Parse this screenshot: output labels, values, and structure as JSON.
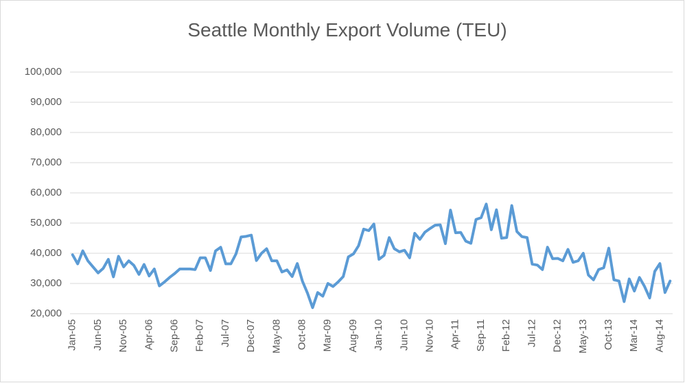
{
  "chart_data": {
    "type": "line",
    "title": "Seattle Monthly Export Volume (TEU)",
    "categories": [
      "Jan-05",
      null,
      null,
      null,
      null,
      "Jun-05",
      null,
      null,
      null,
      null,
      "Nov-05",
      null,
      null,
      null,
      null,
      "Apr-06",
      null,
      null,
      null,
      null,
      "Sep-06",
      null,
      null,
      null,
      null,
      "Feb-07",
      null,
      null,
      null,
      null,
      "Jul-07",
      null,
      null,
      null,
      null,
      "Dec-07",
      null,
      null,
      null,
      null,
      "May-08",
      null,
      null,
      null,
      null,
      "Oct-08",
      null,
      null,
      null,
      null,
      "Mar-09",
      null,
      null,
      null,
      null,
      "Aug-09",
      null,
      null,
      null,
      null,
      "Jan-10",
      null,
      null,
      null,
      null,
      "Jun-10",
      null,
      null,
      null,
      null,
      "Nov-10",
      null,
      null,
      null,
      null,
      "Apr-11",
      null,
      null,
      null,
      null,
      "Sep-11",
      null,
      null,
      null,
      null,
      "Feb-12",
      null,
      null,
      null,
      null,
      "Jul-12",
      null,
      null,
      null,
      null,
      "Dec-12",
      null,
      null,
      null,
      null,
      "May-13",
      null,
      null,
      null,
      null,
      "Oct-13",
      null,
      null,
      null,
      null,
      "Mar-14",
      null,
      null,
      null,
      null,
      "Aug-14",
      null,
      null
    ],
    "series": [
      {
        "color": "#5b9bd5",
        "values": [
          39500,
          36500,
          40800,
          37500,
          35500,
          33500,
          35000,
          38000,
          32200,
          39000,
          35500,
          37500,
          36000,
          33000,
          36300,
          32500,
          34800,
          29200,
          30500,
          32000,
          33300,
          34800,
          34800,
          34800,
          34600,
          38500,
          38500,
          34300,
          40800,
          42000,
          36500,
          36500,
          39800,
          45400,
          45600,
          46000,
          37600,
          40000,
          41500,
          37500,
          37500,
          33800,
          34500,
          32300,
          36600,
          30800,
          26800,
          22000,
          27000,
          25800,
          30000,
          29000,
          30500,
          32300,
          38800,
          39800,
          42500,
          48000,
          47500,
          49700,
          38000,
          39300,
          45200,
          41500,
          40500,
          41000,
          38500,
          46600,
          44600,
          47000,
          48200,
          49300,
          49400,
          43200,
          54300,
          46800,
          46900,
          44000,
          43300,
          51200,
          51800,
          56300,
          47800,
          54400,
          45000,
          45200,
          55800,
          47200,
          45500,
          45200,
          36400,
          36100,
          34600,
          42000,
          38200,
          38300,
          37500,
          41300,
          37000,
          37500,
          40000,
          32800,
          31200,
          34600,
          35200,
          41700,
          31200,
          30800,
          24000,
          31500,
          27500,
          32000,
          29000,
          25200,
          34000,
          36600,
          27000,
          30800
        ]
      }
    ],
    "ylim": [
      20000,
      100000
    ],
    "yticks": [
      {
        "value": 20000,
        "label": "20,000"
      },
      {
        "value": 30000,
        "label": "30,000"
      },
      {
        "value": 40000,
        "label": "40,000"
      },
      {
        "value": 50000,
        "label": "50,000"
      },
      {
        "value": 60000,
        "label": "60,000"
      },
      {
        "value": 70000,
        "label": "70,000"
      },
      {
        "value": 80000,
        "label": "80,000"
      },
      {
        "value": 90000,
        "label": "90,000"
      },
      {
        "value": 100000,
        "label": "100,000"
      }
    ],
    "grid": true
  }
}
